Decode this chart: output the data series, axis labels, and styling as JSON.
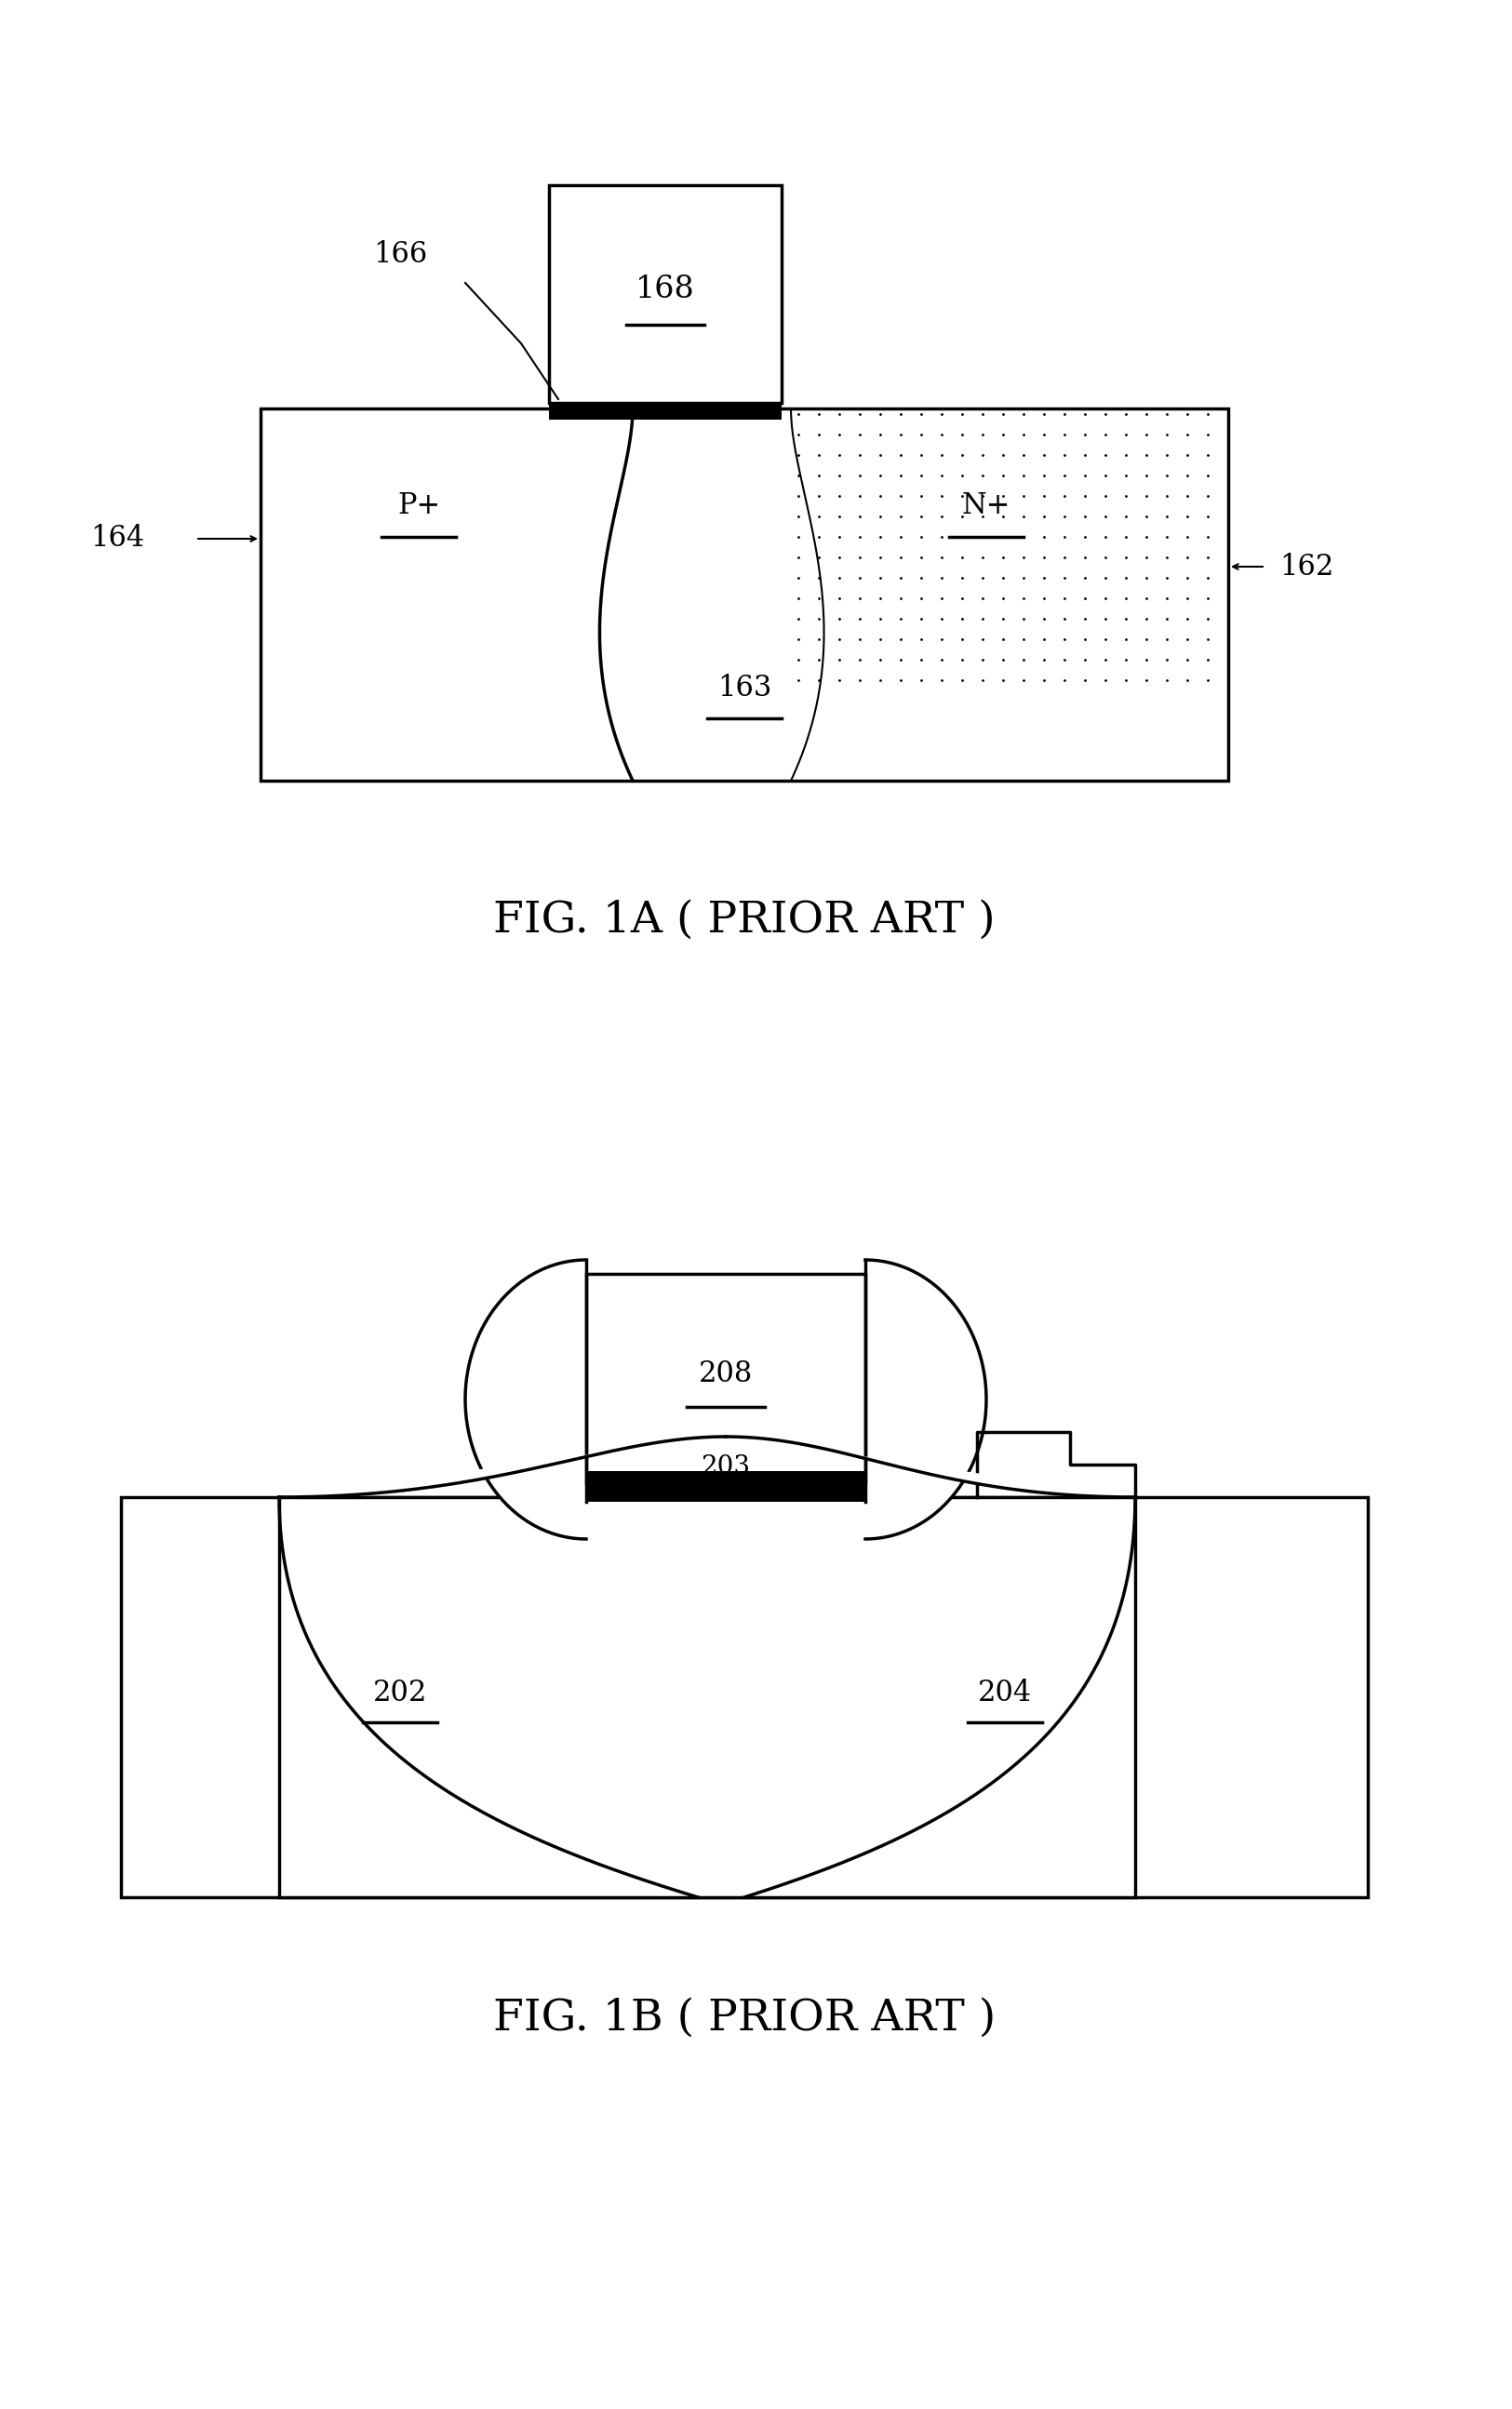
{
  "fig_width": 16.25,
  "fig_height": 25.89,
  "bg_color": "#ffffff",
  "line_color": "#000000",
  "fig1a_caption": "FIG. 1A ( PRIOR ART )",
  "fig1b_caption": "FIG. 1B ( PRIOR ART )",
  "label_166": "166",
  "label_168": "168",
  "label_164": "164",
  "label_162": "162",
  "label_163": "163",
  "label_Pplus": "P+",
  "label_Nplus": "N+",
  "label_208": "208",
  "label_203": "203",
  "label_202": "202",
  "label_204": "204"
}
